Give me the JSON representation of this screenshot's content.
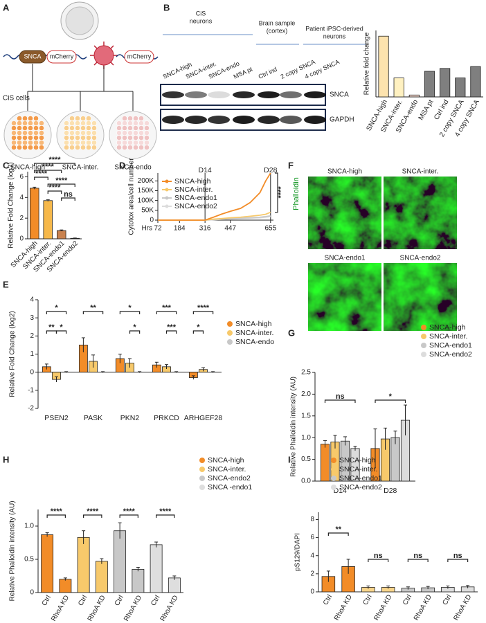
{
  "panel_labels": [
    "A",
    "B",
    "C",
    "D",
    "E",
    "F",
    "G",
    "H",
    "I"
  ],
  "diagram_a": {
    "construct_labels": [
      "SNCA",
      "mCherry",
      "mCherry"
    ],
    "group_label": "CiS cells",
    "dish_labels": [
      "SNCA-high",
      "SNCA-inter.",
      "SNCA-endo"
    ]
  },
  "blot_b": {
    "groups": [
      [
        "CiS",
        "neurons"
      ],
      [
        "Brain sample",
        "(cortex)"
      ],
      [
        "Patient iPSC-derived",
        "neurons"
      ]
    ],
    "lanes": [
      "SNCA-high",
      "SNCA-inter.",
      "SNCA-endo",
      "MSA pt",
      "Ctrl ind",
      "2 copy SNCA",
      "4 copy SNCA"
    ],
    "rows": [
      "SNCA",
      "GAPDH"
    ]
  },
  "images_f": {
    "stain": "Phalloidin",
    "titles": [
      "SNCA-high",
      "SNCA-inter.",
      "SNCA-endo1",
      "SNCA-endo2"
    ]
  },
  "chart_data": [
    {
      "type": "bar",
      "ylabel": "Relative fold change",
      "categories": [
        "SNCA-high",
        "SNCA-inter.",
        "SNCA-endo",
        "MSA pt",
        "Ctrl ind",
        "2 copy SNCA",
        "4 copy SNCA"
      ],
      "values": [
        3.2,
        1.0,
        0.1,
        1.35,
        1.5,
        1.0,
        1.6
      ],
      "colors": [
        "#fde3ae",
        "#fff1c1",
        "#f9dcd2",
        "#7f7f7f",
        "#7f7f7f",
        "#7f7f7f",
        "#7f7f7f"
      ],
      "ylim": [
        0,
        3.5
      ]
    },
    {
      "type": "bar",
      "ylabel": "Relative Fold Change (log2)",
      "categories": [
        "SNCA-high",
        "SNCA-inter.",
        "SNCA-endo1",
        "SNCA-endo2"
      ],
      "values": [
        4.9,
        3.7,
        0.8,
        0.05
      ],
      "errors": [
        0.1,
        0.08,
        0.06,
        0.03
      ],
      "colors": [
        "#f28c28",
        "#f6b84a",
        "#c9824f",
        "#bdbdbd"
      ],
      "ylim": [
        0,
        6.5
      ],
      "yticks": [
        0,
        2,
        4,
        6
      ],
      "annotations": [
        "****",
        "****",
        "****",
        "****",
        "****",
        "ns"
      ]
    },
    {
      "type": "line",
      "ylabel": "Cytotox area/cell number",
      "xlabel": "Hrs",
      "x": [
        72,
        120,
        184,
        250,
        316,
        360,
        400,
        447,
        500,
        550,
        600,
        630,
        655
      ],
      "series": [
        {
          "name": "SNCA-high",
          "color": "#f28c28",
          "values": [
            0,
            0,
            0,
            0,
            0,
            15000,
            30000,
            45000,
            60000,
            90000,
            140000,
            200000,
            240000
          ]
        },
        {
          "name": "SNCA-inter.",
          "color": "#f7c96b",
          "values": [
            0,
            0,
            0,
            0,
            0,
            5000,
            8000,
            12000,
            15000,
            20000,
            25000,
            30000,
            40000
          ]
        },
        {
          "name": "SNCA-endo1",
          "color": "#c8c8c8",
          "values": [
            0,
            0,
            0,
            0,
            0,
            3000,
            5000,
            8000,
            10000,
            12000,
            15000,
            18000,
            22000
          ]
        },
        {
          "name": "SNCA-endo2",
          "color": "#dcdcdc",
          "values": [
            0,
            0,
            0,
            0,
            0,
            2000,
            4000,
            6000,
            8000,
            10000,
            12000,
            15000,
            18000
          ]
        }
      ],
      "xlim": [
        72,
        670
      ],
      "ylim": [
        0,
        240000
      ],
      "xticks": [
        72,
        184,
        316,
        447,
        655
      ],
      "yticks": [
        0,
        {
          "value": 50000,
          "label": "50K"
        },
        {
          "value": 100000,
          "label": "100K"
        },
        {
          "value": 150000,
          "label": "150K"
        },
        {
          "value": 200000,
          "label": "200K"
        }
      ],
      "annotations": [
        "D14",
        "D28",
        "****"
      ]
    },
    {
      "type": "bar",
      "ylabel": "Relative Fold Change (log2)",
      "categories": [
        "PSEN2",
        "PASK",
        "PKN2",
        "PRKCD",
        "ARHGEF28"
      ],
      "series": [
        {
          "name": "SNCA-high",
          "color": "#f28c28",
          "values": [
            0.3,
            1.5,
            0.75,
            0.4,
            -0.3
          ],
          "errors": [
            0.15,
            0.4,
            0.25,
            0.15,
            0.1
          ]
        },
        {
          "name": "SNCA-inter.",
          "color": "#f7c96b",
          "values": [
            -0.4,
            0.6,
            0.5,
            0.3,
            0.15
          ],
          "errors": [
            0.15,
            0.35,
            0.25,
            0.12,
            0.1
          ]
        },
        {
          "name": "SNCA-endo",
          "color": "#c8c8c8",
          "values": [
            0,
            0,
            0,
            0,
            0
          ],
          "errors": [
            0.03,
            0.03,
            0.03,
            0.03,
            0.03
          ]
        }
      ],
      "ylim": [
        -2,
        4
      ],
      "yticks": [
        -2,
        -1,
        0,
        1,
        2,
        3,
        4
      ],
      "annotations": [
        "*",
        "**",
        "*",
        "**",
        "*",
        "*",
        "***",
        "***",
        "****",
        "*"
      ]
    },
    {
      "type": "bar",
      "ylabel": "Relative Phalloidin intensity (AU)",
      "categories": [
        "D14",
        "D28"
      ],
      "series": [
        {
          "name": "SNCA-high",
          "color": "#f28c28",
          "values": [
            0.85,
            0.75
          ],
          "errors": [
            0.08,
            0.45
          ]
        },
        {
          "name": "SNCA-inter.",
          "color": "#f7c96b",
          "values": [
            0.9,
            0.97
          ],
          "errors": [
            0.15,
            0.25
          ]
        },
        {
          "name": "SNCA-endo1",
          "color": "#c8c8c8",
          "values": [
            0.92,
            1.0
          ],
          "errors": [
            0.1,
            0.15
          ]
        },
        {
          "name": "SNCA-endo2",
          "color": "#dcdcdc",
          "values": [
            0.75,
            1.4
          ],
          "errors": [
            0.05,
            0.35
          ]
        }
      ],
      "ylim": [
        0,
        2.5
      ],
      "yticks": [
        {
          "value": 0,
          "label": "0.0"
        },
        0.5,
        {
          "value": 1,
          "label": "1.0"
        },
        1.5,
        {
          "value": 2,
          "label": "2.0"
        },
        2.5
      ],
      "annotations": [
        "ns",
        "*"
      ]
    },
    {
      "type": "bar",
      "ylabel": "Relative Phalloidin intensity (AU)",
      "categories": [
        "Ctrl",
        "RhoA KD",
        "Ctrl",
        "RhoA KD",
        "Ctrl",
        "RhoA KD",
        "Ctrl",
        "RhoA KD"
      ],
      "values": [
        0.87,
        0.2,
        0.83,
        0.47,
        0.93,
        0.35,
        0.72,
        0.22
      ],
      "errors": [
        0.03,
        0.02,
        0.1,
        0.04,
        0.12,
        0.03,
        0.04,
        0.03
      ],
      "colors": [
        "#f28c28",
        "#f28c28",
        "#f7c96b",
        "#f7c96b",
        "#c8c8c8",
        "#c8c8c8",
        "#dedede",
        "#dedede"
      ],
      "legend": [
        {
          "name": "SNCA-high",
          "color": "#f28c28"
        },
        {
          "name": "SNCA-inter.",
          "color": "#f7c96b"
        },
        {
          "name": "SNCA-endo2",
          "color": "#c8c8c8"
        },
        {
          "name": "SNCA -endo1",
          "color": "#dedede"
        }
      ],
      "ylim": [
        0,
        1.25
      ],
      "yticks": [
        0,
        0.5,
        {
          "value": 1,
          "label": "1.0"
        }
      ],
      "annotations": [
        "****",
        "****",
        "****",
        "****"
      ]
    },
    {
      "type": "bar",
      "ylabel": "pS129/DAPI",
      "categories": [
        "Ctrl",
        "RhoA KD",
        "Ctrl",
        "RhoA KD",
        "Ctrl",
        "RhoA KD",
        "Ctrl",
        "RhoA KD"
      ],
      "values": [
        1.7,
        2.8,
        0.5,
        0.5,
        0.4,
        0.45,
        0.5,
        0.55
      ],
      "errors": [
        0.6,
        0.8,
        0.15,
        0.15,
        0.15,
        0.15,
        0.15,
        0.15
      ],
      "colors": [
        "#f28c28",
        "#f28c28",
        "#f7d48a",
        "#f7d48a",
        "#c8c8c8",
        "#c8c8c8",
        "#dedede",
        "#dedede"
      ],
      "legend": [
        {
          "name": "SNCA-high",
          "color": "#f28c28"
        },
        {
          "name": "SNCA-inter.",
          "color": "#f7c96b"
        },
        {
          "name": "SNCA-endo1",
          "color": "#c8c8c8"
        },
        {
          "name": "SNCA-endo2",
          "color": "#dedede"
        }
      ],
      "ylim": [
        0,
        8.8
      ],
      "yticks": [
        0,
        2,
        4,
        6,
        8
      ],
      "annotations": [
        "**",
        "ns",
        "ns",
        "ns"
      ]
    }
  ]
}
